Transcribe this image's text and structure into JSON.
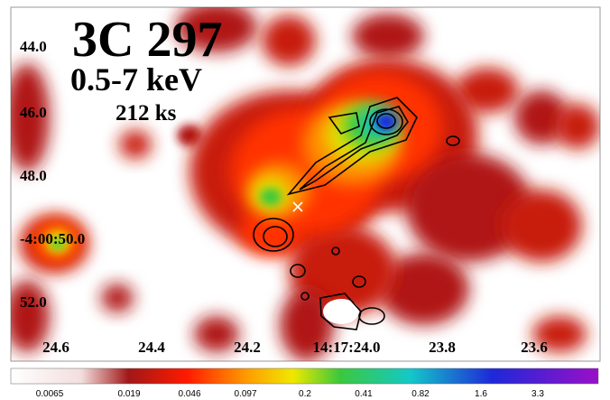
{
  "title": "3C 297",
  "band": "0.5-7 keV",
  "exposure": "212 ks",
  "y_axis_labels": [
    "44.0",
    "46.0",
    "48.0",
    "-4:00:50.0",
    "52.0"
  ],
  "x_axis_labels": [
    "24.6",
    "24.4",
    "24.2",
    "14:17:24.0",
    "23.8",
    "23.6"
  ],
  "colorbar_labels": [
    "0.0065",
    "0.019",
    "0.046",
    "0.097",
    "0.2",
    "0.41",
    "0.82",
    "1.6",
    "3.3"
  ]
}
